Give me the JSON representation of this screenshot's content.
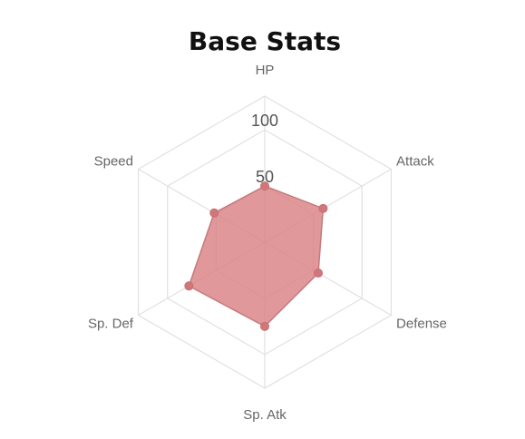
{
  "chart_data": {
    "type": "radar",
    "title": "Base Stats",
    "axes": [
      "HP",
      "Attack",
      "Defense",
      "Sp. Atk",
      "Sp. Def",
      "Speed"
    ],
    "series": [
      {
        "values": [
          50,
          60,
          55,
          75,
          78,
          52
        ]
      }
    ],
    "r_range": [
      0,
      130
    ],
    "r_ticks": [
      {
        "value": 50,
        "label": "50"
      },
      {
        "value": 100,
        "label": "100"
      }
    ],
    "grid": true,
    "legend": "none",
    "colors": {
      "fill": "#d98184",
      "stroke": "#c47a7c",
      "point": "#cf777a",
      "grid": "#e1e1e1"
    }
  }
}
